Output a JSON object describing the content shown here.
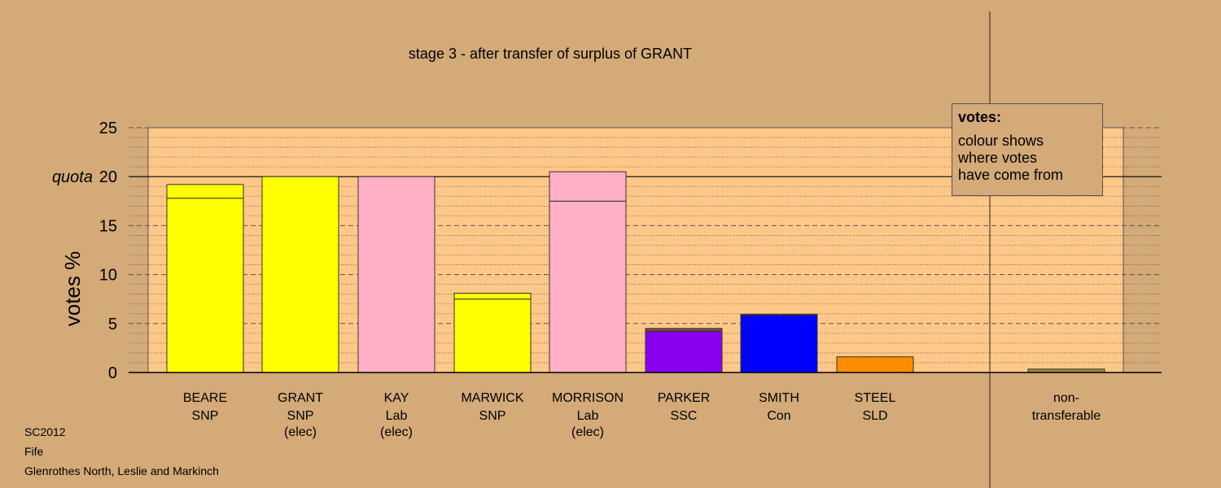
{
  "chart_data": {
    "type": "bar",
    "title": "stage 3 - after transfer of surplus of GRANT",
    "ylabel": "votes %",
    "ylim": [
      0,
      25
    ],
    "yticks": [
      "0",
      "5",
      "10",
      "15",
      "20",
      "25"
    ],
    "quota": {
      "label": "quota",
      "value": 20
    },
    "categories": [
      {
        "name": "BEARE",
        "party": "SNP",
        "note": ""
      },
      {
        "name": "GRANT",
        "party": "SNP",
        "note": "(elec)"
      },
      {
        "name": "KAY",
        "party": "Lab",
        "note": "(elec)"
      },
      {
        "name": "MARWICK",
        "party": "SNP",
        "note": ""
      },
      {
        "name": "MORRISON",
        "party": "Lab",
        "note": "(elec)"
      },
      {
        "name": "PARKER",
        "party": "SSC",
        "note": ""
      },
      {
        "name": "SMITH",
        "party": "Con",
        "note": ""
      },
      {
        "name": "STEEL",
        "party": "SLD",
        "note": ""
      },
      {
        "name": "",
        "party": "",
        "note": ""
      },
      {
        "name": "non-",
        "party": "transferable",
        "note": ""
      }
    ],
    "bars": [
      {
        "segments": [
          {
            "value": 17.8,
            "color": "#ffff00"
          },
          {
            "value": 1.4,
            "color": "#ffff00"
          }
        ]
      },
      {
        "segments": [
          {
            "value": 20.0,
            "color": "#ffff00"
          }
        ]
      },
      {
        "segments": [
          {
            "value": 20.0,
            "color": "#ffb0c4"
          }
        ]
      },
      {
        "segments": [
          {
            "value": 7.5,
            "color": "#ffff00"
          },
          {
            "value": 0.6,
            "color": "#ffff00"
          }
        ]
      },
      {
        "segments": [
          {
            "value": 17.5,
            "color": "#ffb0c4"
          },
          {
            "value": 3.0,
            "color": "#ffb0c4"
          }
        ]
      },
      {
        "segments": [
          {
            "value": 4.2,
            "color": "#8800ee"
          },
          {
            "value": 0.3,
            "color": "#7a4a3a"
          }
        ]
      },
      {
        "segments": [
          {
            "value": 5.85,
            "color": "#0000ff"
          },
          {
            "value": 0.1,
            "color": "#3a2a4a"
          }
        ]
      },
      {
        "segments": [
          {
            "value": 1.6,
            "color": "#ff8c00"
          }
        ]
      },
      {
        "segments": []
      },
      {
        "segments": [
          {
            "value": 0.35,
            "color": "#9a8a3a"
          }
        ]
      }
    ],
    "grid": true,
    "legend": {
      "title": "votes:",
      "lines": [
        "colour shows",
        "where votes",
        "have come from"
      ]
    }
  },
  "colors": {
    "background": "#d4aa78",
    "plot_area": "#ffc888",
    "grid": "#555555"
  },
  "footer": {
    "line1": "SC2012",
    "line2": "Fife",
    "line3": "Glenrothes North, Leslie and Markinch"
  }
}
